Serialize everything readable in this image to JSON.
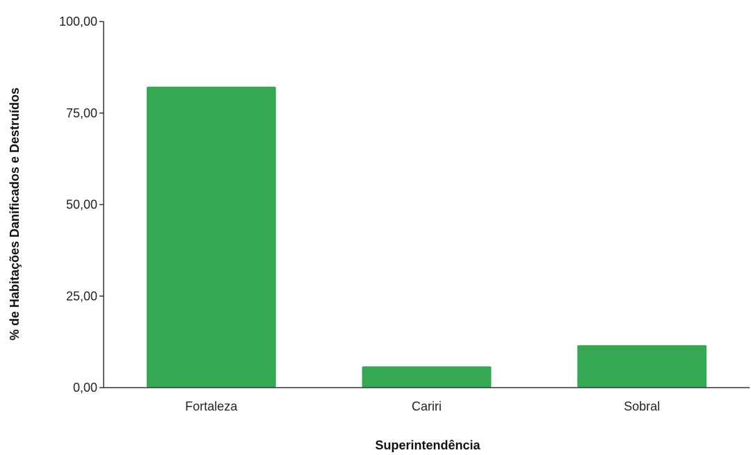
{
  "chart_data": {
    "type": "bar",
    "categories": [
      "Fortaleza",
      "Cariri",
      "Sobral"
    ],
    "values": [
      82.2,
      5.8,
      11.6
    ],
    "xlabel": "Superintendência",
    "ylabel": "% de Habitações Danificados e Destruídos",
    "ylim": [
      0,
      100
    ],
    "yticks": [
      0,
      25,
      50,
      75,
      100
    ],
    "ytick_labels": [
      "0,00",
      "25,00",
      "50,00",
      "75,00",
      "100,00"
    ],
    "bar_color": "#34a853",
    "grid": false,
    "legend": "none"
  }
}
